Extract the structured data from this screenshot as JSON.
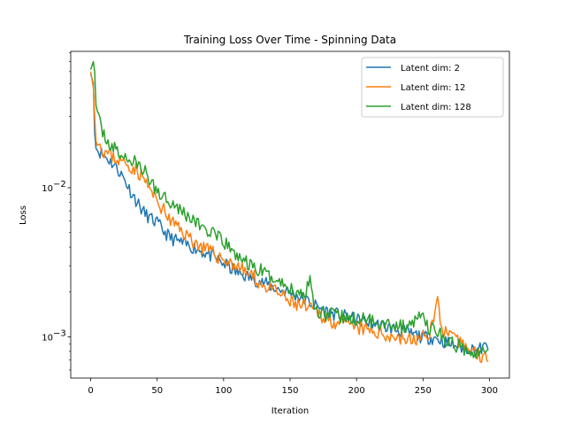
{
  "chart_data": {
    "type": "line",
    "title": "Training Loss Over Time - Spinning Data",
    "xlabel": "Iteration",
    "ylabel": "Loss",
    "yscale": "log",
    "xlim": [
      -15,
      315
    ],
    "ylim": [
      0.00053,
      0.082
    ],
    "x_ticks": [
      0,
      50,
      100,
      150,
      200,
      250,
      300
    ],
    "x_tick_labels": [
      "0",
      "50",
      "100",
      "150",
      "200",
      "250",
      "300"
    ],
    "y_major_ticks": [
      0.001,
      0.01
    ],
    "y_major_tick_labels": [
      "10",
      "10"
    ],
    "y_major_tick_exponents": [
      "−3",
      "−2"
    ],
    "grid": false,
    "legend_position": "top-right",
    "x_count": 300,
    "series": [
      {
        "name": "Latent dim: 2",
        "color": "#1f77b4",
        "anchors": [
          [
            0,
            0.058
          ],
          [
            2,
            0.05
          ],
          [
            3,
            0.023
          ],
          [
            5,
            0.018
          ],
          [
            10,
            0.0165
          ],
          [
            15,
            0.015
          ],
          [
            20,
            0.0135
          ],
          [
            25,
            0.0115
          ],
          [
            30,
            0.0095
          ],
          [
            35,
            0.008
          ],
          [
            40,
            0.0068
          ],
          [
            45,
            0.0062
          ],
          [
            50,
            0.0058
          ],
          [
            55,
            0.0051
          ],
          [
            60,
            0.0046
          ],
          [
            70,
            0.0042
          ],
          [
            80,
            0.0039
          ],
          [
            90,
            0.0035
          ],
          [
            100,
            0.0031
          ],
          [
            110,
            0.0027
          ],
          [
            120,
            0.0025
          ],
          [
            130,
            0.0023
          ],
          [
            140,
            0.0021
          ],
          [
            150,
            0.002
          ],
          [
            160,
            0.0018
          ],
          [
            170,
            0.0016
          ],
          [
            180,
            0.00145
          ],
          [
            190,
            0.00138
          ],
          [
            200,
            0.0013
          ],
          [
            210,
            0.00125
          ],
          [
            220,
            0.00118
          ],
          [
            230,
            0.00112
          ],
          [
            240,
            0.00105
          ],
          [
            250,
            0.001
          ],
          [
            260,
            0.00098
          ],
          [
            270,
            0.0009
          ],
          [
            280,
            0.00085
          ],
          [
            290,
            0.00082
          ],
          [
            297,
            0.00085
          ],
          [
            300,
            0.0009
          ]
        ],
        "noise": 0.045,
        "seed": 11
      },
      {
        "name": "Latent dim: 12",
        "color": "#ff7f0e",
        "anchors": [
          [
            0,
            0.06
          ],
          [
            2,
            0.047
          ],
          [
            3,
            0.03
          ],
          [
            4,
            0.023
          ],
          [
            6,
            0.02
          ],
          [
            10,
            0.0175
          ],
          [
            20,
            0.0155
          ],
          [
            30,
            0.014
          ],
          [
            35,
            0.013
          ],
          [
            40,
            0.0115
          ],
          [
            45,
            0.0095
          ],
          [
            50,
            0.0082
          ],
          [
            55,
            0.007
          ],
          [
            60,
            0.006
          ],
          [
            70,
            0.005
          ],
          [
            80,
            0.0042
          ],
          [
            90,
            0.0037
          ],
          [
            100,
            0.0033
          ],
          [
            110,
            0.003
          ],
          [
            120,
            0.0026
          ],
          [
            130,
            0.0022
          ],
          [
            140,
            0.002
          ],
          [
            150,
            0.0017
          ],
          [
            160,
            0.0016
          ],
          [
            170,
            0.00145
          ],
          [
            180,
            0.0013
          ],
          [
            190,
            0.0012
          ],
          [
            200,
            0.00115
          ],
          [
            210,
            0.0011
          ],
          [
            220,
            0.00105
          ],
          [
            230,
            0.001
          ],
          [
            240,
            0.00095
          ],
          [
            250,
            0.00098
          ],
          [
            255,
            0.0011
          ],
          [
            258,
            0.0013
          ],
          [
            261,
            0.0018
          ],
          [
            263,
            0.0013
          ],
          [
            266,
            0.0011
          ],
          [
            270,
            0.001
          ],
          [
            280,
            0.00088
          ],
          [
            290,
            0.00078
          ],
          [
            300,
            0.0007
          ]
        ],
        "noise": 0.05,
        "seed": 23
      },
      {
        "name": "Latent dim: 128",
        "color": "#2ca02c",
        "anchors": [
          [
            0,
            0.062
          ],
          [
            2,
            0.07
          ],
          [
            3,
            0.06
          ],
          [
            4,
            0.04
          ],
          [
            5,
            0.03
          ],
          [
            8,
            0.025
          ],
          [
            15,
            0.019
          ],
          [
            25,
            0.016
          ],
          [
            35,
            0.0145
          ],
          [
            40,
            0.013
          ],
          [
            45,
            0.011
          ],
          [
            50,
            0.0095
          ],
          [
            60,
            0.0082
          ],
          [
            70,
            0.0068
          ],
          [
            80,
            0.0058
          ],
          [
            90,
            0.005
          ],
          [
            100,
            0.0043
          ],
          [
            110,
            0.0035
          ],
          [
            120,
            0.003
          ],
          [
            130,
            0.0027
          ],
          [
            140,
            0.0024
          ],
          [
            150,
            0.0021
          ],
          [
            160,
            0.0019
          ],
          [
            165,
            0.0025
          ],
          [
            168,
            0.0017
          ],
          [
            170,
            0.0015
          ],
          [
            180,
            0.0014
          ],
          [
            190,
            0.00135
          ],
          [
            200,
            0.0013
          ],
          [
            210,
            0.0013
          ],
          [
            220,
            0.00125
          ],
          [
            230,
            0.0012
          ],
          [
            240,
            0.00115
          ],
          [
            245,
            0.0014
          ],
          [
            250,
            0.0013
          ],
          [
            255,
            0.00115
          ],
          [
            260,
            0.0011
          ],
          [
            270,
            0.0009
          ],
          [
            280,
            0.00085
          ],
          [
            290,
            0.0008
          ],
          [
            300,
            0.00078
          ]
        ],
        "noise": 0.05,
        "seed": 37
      }
    ]
  }
}
